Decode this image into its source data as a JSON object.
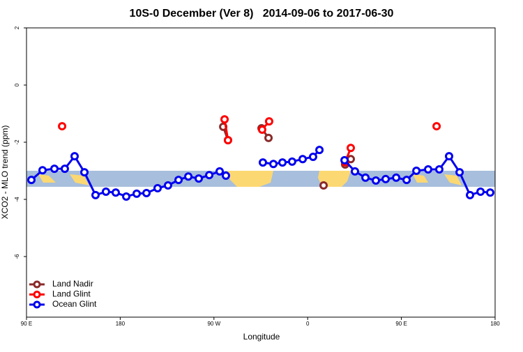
{
  "chart_data": {
    "type": "line",
    "title": "10S-0 December (Ver 8)   2014-09-06 to 2017-06-30",
    "xlabel": "Longitude",
    "ylabel": "XCO2 - MLO trend (ppm)",
    "xlim": [
      90,
      540
    ],
    "ylim": [
      -8.12,
      2
    ],
    "xticks": [
      {
        "value": 90,
        "label": "90 E"
      },
      {
        "value": 180,
        "label": "180"
      },
      {
        "value": 270,
        "label": "90 W"
      },
      {
        "value": 360,
        "label": "0"
      },
      {
        "value": 450,
        "label": "90 E"
      },
      {
        "value": 540,
        "label": "180"
      }
    ],
    "yticks": [
      2,
      0,
      -2,
      -4,
      -6
    ],
    "legend": "bottom-left",
    "series": [
      {
        "name": "Land Nadir",
        "color": "#8b2a2a",
        "x": [
          278.9,
          283.5,
          null,
          315.7,
          322.4,
          null,
          375.3,
          null,
          396,
          401.4
        ],
        "values": [
          -1.46,
          -1.93,
          null,
          -1.51,
          -1.85,
          null,
          -3.51,
          null,
          -2.78,
          -2.59
        ]
      },
      {
        "name": "Land Glint",
        "color": "#ff0000",
        "x": [
          124.2,
          null,
          280.2,
          283.5,
          null,
          316.3,
          323,
          null,
          396,
          401.4,
          null,
          483.8
        ],
        "values": [
          -1.44,
          null,
          -1.2,
          -1.93,
          null,
          -1.56,
          -1.27,
          null,
          -2.7,
          -2.2,
          null,
          -1.44
        ]
      },
      {
        "name": "Ocean Glint",
        "color": "#0000ee",
        "x": [
          94.7,
          105.4,
          116.8,
          126.8,
          136.2,
          145.6,
          156.3,
          166.3,
          175.7,
          185.8,
          195.8,
          205.2,
          215.9,
          225.9,
          236,
          245.4,
          255.4,
          265.5,
          275.5,
          281.5,
          null,
          317,
          327.1,
          335.8,
          345.1,
          355.2,
          365.2,
          371.3,
          null,
          395.4,
          405.4,
          415.5,
          425.5,
          434.9,
          445,
          455,
          464.4,
          475.7,
          486.4,
          495.8,
          505.9,
          515.9,
          526,
          535.3
        ],
        "values": [
          -3.32,
          -2.98,
          -2.93,
          -2.93,
          -2.49,
          -3.05,
          -3.85,
          -3.73,
          -3.76,
          -3.9,
          -3.8,
          -3.78,
          -3.61,
          -3.51,
          -3.32,
          -3.2,
          -3.27,
          -3.15,
          -3.02,
          -3.17,
          null,
          -2.71,
          -2.76,
          -2.71,
          -2.68,
          -2.59,
          -2.51,
          -2.27,
          null,
          -2.63,
          -3.02,
          -3.24,
          -3.34,
          -3.29,
          -3.24,
          -3.32,
          -3.0,
          -2.95,
          -2.95,
          -2.49,
          -3.05,
          -3.85,
          -3.73,
          -3.76
        ]
      }
    ]
  }
}
